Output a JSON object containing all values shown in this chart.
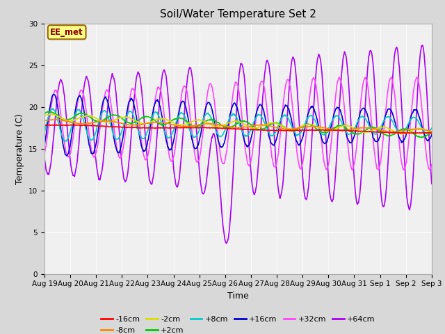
{
  "title": "Soil/Water Temperature Set 2",
  "xlabel": "Time",
  "ylabel": "Temperature (C)",
  "annotation": "EE_met",
  "ylim": [
    0,
    30
  ],
  "bg_color": "#d8d8d8",
  "plot_bg_color": "#f0f0f0",
  "series_order": [
    "+64cm",
    "+32cm",
    "+16cm",
    "+8cm",
    "+2cm",
    "-2cm",
    "-8cm",
    "-16cm"
  ],
  "legend_order": [
    "-16cm",
    "-8cm",
    "-2cm",
    "+2cm",
    "+8cm",
    "+16cm",
    "+32cm",
    "+64cm"
  ],
  "series": {
    "-16cm": {
      "color": "#ff0000",
      "lw": 1.2
    },
    "-8cm": {
      "color": "#ff8800",
      "lw": 1.2
    },
    "-2cm": {
      "color": "#dddd00",
      "lw": 1.2
    },
    "+2cm": {
      "color": "#00cc00",
      "lw": 1.2
    },
    "+8cm": {
      "color": "#00cccc",
      "lw": 1.2
    },
    "+16cm": {
      "color": "#0000cc",
      "lw": 1.2
    },
    "+32cm": {
      "color": "#ff44ff",
      "lw": 1.2
    },
    "+64cm": {
      "color": "#aa00ee",
      "lw": 1.2
    }
  },
  "xtick_labels": [
    "Aug 19",
    "Aug 20",
    "Aug 21",
    "Aug 22",
    "Aug 23",
    "Aug 24",
    "Aug 25",
    "Aug 26",
    "Aug 27",
    "Aug 28",
    "Aug 29",
    "Aug 30",
    "Aug 31",
    "Sep 1",
    "Sep 2",
    "Sep 3"
  ],
  "tick_fontsize": 7.5,
  "title_fontsize": 11,
  "label_fontsize": 9,
  "legend_fontsize": 8
}
